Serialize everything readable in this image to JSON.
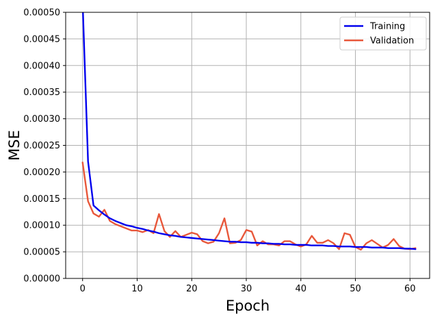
{
  "chart_data": {
    "type": "line",
    "title": "",
    "xlabel": "Epoch",
    "ylabel": "MSE",
    "xlim": [
      -3.1,
      63.6
    ],
    "ylim": [
      0,
      0.0005
    ],
    "x_ticks": [
      0,
      10,
      20,
      30,
      40,
      50,
      60
    ],
    "x_tick_labels": [
      "0",
      "10",
      "20",
      "30",
      "40",
      "50",
      "60"
    ],
    "y_ticks": [
      0,
      5e-05,
      0.0001,
      0.00015,
      0.0002,
      0.00025,
      0.0003,
      0.00035,
      0.0004,
      0.00045,
      0.0005
    ],
    "y_tick_labels": [
      "0.00000",
      "0.00005",
      "0.00010",
      "0.00015",
      "0.00020",
      "0.00025",
      "0.00030",
      "0.00035",
      "0.00040",
      "0.00045",
      "0.00050"
    ],
    "grid": true,
    "legend_position": "top-right",
    "x": [
      0,
      1,
      2,
      3,
      4,
      5,
      6,
      7,
      8,
      9,
      10,
      11,
      12,
      13,
      14,
      15,
      16,
      17,
      18,
      19,
      20,
      21,
      22,
      23,
      24,
      25,
      26,
      27,
      28,
      29,
      30,
      31,
      32,
      33,
      34,
      35,
      36,
      37,
      38,
      39,
      40,
      41,
      42,
      43,
      44,
      45,
      46,
      47,
      48,
      49,
      50,
      51,
      52,
      53,
      54,
      55,
      56,
      57,
      58,
      59,
      60,
      61
    ],
    "series": [
      {
        "name": "Training",
        "color": "#0000ee",
        "values": [
          0.00052,
          0.00022,
          0.000137,
          0.000128,
          0.00012,
          0.000113,
          0.000108,
          0.000104,
          0.0001,
          9.8e-05,
          9.5e-05,
          9.3e-05,
          9e-05,
          8.8e-05,
          8.5e-05,
          8.3e-05,
          8.1e-05,
          8e-05,
          7.8e-05,
          7.7e-05,
          7.6e-05,
          7.5e-05,
          7.4e-05,
          7.3e-05,
          7.2e-05,
          7.1e-05,
          7e-05,
          6.9e-05,
          6.9e-05,
          6.8e-05,
          6.8e-05,
          6.7e-05,
          6.7e-05,
          6.6e-05,
          6.6e-05,
          6.5e-05,
          6.5e-05,
          6.4e-05,
          6.4e-05,
          6.3e-05,
          6.3e-05,
          6.3e-05,
          6.2e-05,
          6.2e-05,
          6.2e-05,
          6.1e-05,
          6.1e-05,
          6e-05,
          6e-05,
          6e-05,
          5.9e-05,
          5.9e-05,
          5.9e-05,
          5.8e-05,
          5.8e-05,
          5.8e-05,
          5.7e-05,
          5.7e-05,
          5.7e-05,
          5.6e-05,
          5.6e-05,
          5.5e-05
        ]
      },
      {
        "name": "Validation",
        "color": "#e8573a",
        "values": [
          0.000218,
          0.000145,
          0.000122,
          0.000116,
          0.000129,
          0.000108,
          0.000102,
          9.8e-05,
          9.4e-05,
          9e-05,
          9e-05,
          8.7e-05,
          9.1e-05,
          8.5e-05,
          0.000121,
          8.9e-05,
          7.8e-05,
          8.9e-05,
          7.8e-05,
          8.2e-05,
          8.6e-05,
          8.3e-05,
          7e-05,
          6.6e-05,
          6.9e-05,
          8.5e-05,
          0.000113,
          6.6e-05,
          6.7e-05,
          7.2e-05,
          9.1e-05,
          8.8e-05,
          6.2e-05,
          7e-05,
          6.4e-05,
          6.4e-05,
          6.2e-05,
          7e-05,
          7e-05,
          6.4e-05,
          6e-05,
          6.4e-05,
          8e-05,
          6.7e-05,
          6.7e-05,
          7.2e-05,
          6.6e-05,
          5.5e-05,
          8.5e-05,
          8.2e-05,
          5.9e-05,
          5.4e-05,
          6.6e-05,
          7.2e-05,
          6.5e-05,
          5.8e-05,
          6.3e-05,
          7.4e-05,
          6.1e-05,
          5.6e-05,
          5.5e-05,
          5.7e-05
        ]
      }
    ]
  }
}
